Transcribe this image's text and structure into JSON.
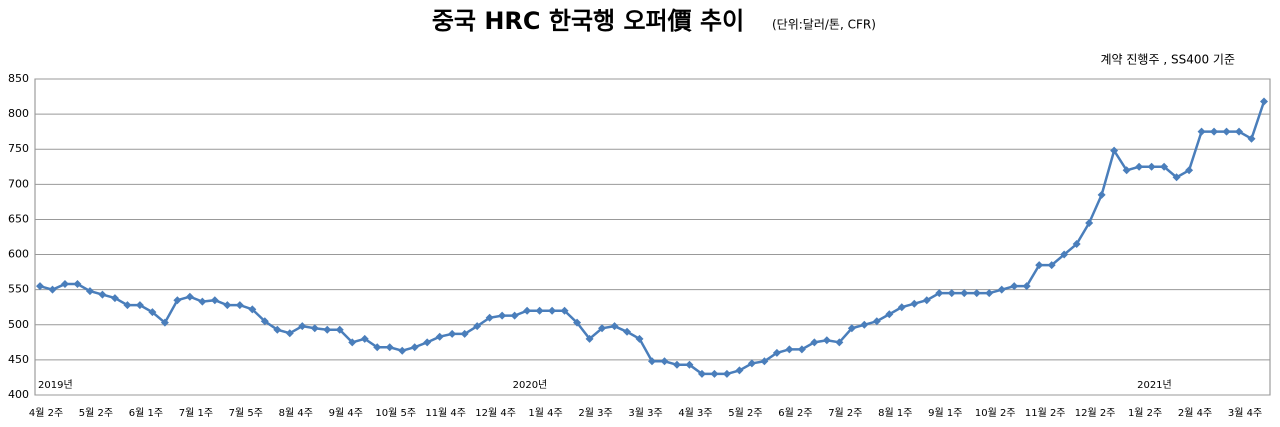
{
  "chart_data": {
    "type": "line",
    "title": "중국 HRC 한국행 오퍼價 추이",
    "subtitle": "(단위:달러/톤, CFR)",
    "note": "계약 진행주 , SS400 기준",
    "annotations": [
      "2019년",
      "2020년",
      "2021년"
    ],
    "categories": [
      "4월 2주",
      null,
      null,
      null,
      "5월 2주",
      null,
      null,
      null,
      "6월 1주",
      null,
      null,
      null,
      "7월 1주",
      null,
      null,
      null,
      "7월 5주",
      null,
      null,
      null,
      "8월 4주",
      null,
      null,
      null,
      "9월 4주",
      null,
      null,
      null,
      "10월 5주",
      null,
      null,
      null,
      "11월 4주",
      null,
      null,
      null,
      "12월 4주",
      null,
      null,
      null,
      "1월 4주",
      null,
      null,
      null,
      "2월 3주",
      null,
      null,
      null,
      "3월 3주",
      null,
      null,
      null,
      "4월 3주",
      null,
      null,
      null,
      "5월 2주",
      null,
      null,
      null,
      "6월 2주",
      null,
      null,
      null,
      "7월 2주",
      null,
      null,
      null,
      "8월 1주",
      null,
      null,
      null,
      "9월 1주",
      null,
      null,
      null,
      "10월 2주",
      null,
      null,
      null,
      "11월 2주",
      null,
      null,
      null,
      "12월 2주",
      null,
      null,
      null,
      "1월 2주",
      null,
      null,
      null,
      "2월 4주",
      null,
      null,
      null,
      "3월 4주",
      null,
      null
    ],
    "series": [
      {
        "name": "오퍼價",
        "color": "#4a7ebb",
        "values": [
          555,
          550,
          558,
          558,
          548,
          543,
          538,
          528,
          528,
          518,
          503,
          535,
          540,
          533,
          535,
          528,
          528,
          522,
          505,
          493,
          488,
          498,
          495,
          493,
          493,
          475,
          480,
          468,
          468,
          463,
          468,
          475,
          483,
          487,
          487,
          498,
          510,
          513,
          513,
          520,
          520,
          520,
          520,
          503,
          480,
          495,
          498,
          490,
          480,
          448,
          448,
          443,
          443,
          430,
          430,
          430,
          435,
          445,
          448,
          460,
          465,
          465,
          475,
          478,
          475,
          495,
          500,
          505,
          515,
          525,
          530,
          535,
          545,
          545,
          545,
          545,
          545,
          550,
          555,
          555,
          585,
          585,
          600,
          615,
          645,
          685,
          748,
          720,
          725,
          725,
          725,
          710,
          720,
          775,
          775,
          775,
          775,
          765,
          818
        ]
      }
    ],
    "ylim": [
      400,
      850
    ],
    "yticks": [
      400,
      450,
      500,
      550,
      600,
      650,
      700,
      750,
      800,
      850
    ],
    "grid": true
  }
}
